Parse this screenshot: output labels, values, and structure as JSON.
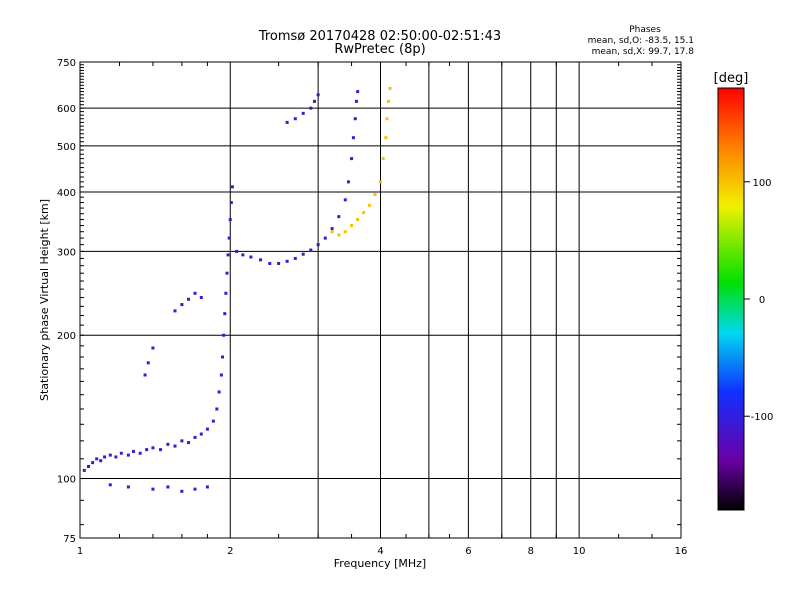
{
  "chart_data": {
    "type": "scatter",
    "title": "Tromsø 20170428 02:50:00-02:51:43",
    "subtitle": "RwPretec (8p)",
    "xlabel": "Frequency [MHz]",
    "ylabel": "Stationary phase Virtual Height [km]",
    "x_scale": "log",
    "y_scale": "log",
    "xlim": [
      1,
      16
    ],
    "ylim": [
      75,
      750
    ],
    "x_ticks": [
      1,
      2,
      4,
      6,
      8,
      10,
      16
    ],
    "y_ticks": [
      75,
      100,
      200,
      300,
      400,
      500,
      600,
      750
    ],
    "x_minor_gridlines": [
      3,
      5,
      7,
      9
    ],
    "grid": true,
    "stats": {
      "header": "Phases",
      "line_o": "mean, sd,O: -83.5, 15.1",
      "line_x": "mean, sd,X:  99.7, 17.8"
    },
    "colorbar": {
      "label": "[deg]",
      "range": [
        -180,
        180
      ],
      "ticks": [
        100,
        0,
        -100
      ],
      "colormap": "rainbow: black-purple-blue-cyan-green-yellow-red"
    },
    "series": [
      {
        "mode": "O",
        "color_phase_deg": -110,
        "points": [
          [
            1.02,
            104
          ],
          [
            1.04,
            106
          ],
          [
            1.06,
            108
          ],
          [
            1.08,
            110
          ],
          [
            1.1,
            109
          ],
          [
            1.12,
            111
          ],
          [
            1.15,
            112
          ],
          [
            1.18,
            111
          ],
          [
            1.21,
            113
          ],
          [
            1.25,
            112
          ],
          [
            1.28,
            114
          ],
          [
            1.32,
            113
          ],
          [
            1.36,
            115
          ],
          [
            1.4,
            116
          ],
          [
            1.45,
            115
          ],
          [
            1.5,
            118
          ],
          [
            1.55,
            117
          ],
          [
            1.6,
            120
          ],
          [
            1.65,
            119
          ],
          [
            1.7,
            122
          ],
          [
            1.75,
            124
          ],
          [
            1.8,
            127
          ],
          [
            1.85,
            132
          ],
          [
            1.88,
            140
          ],
          [
            1.9,
            152
          ],
          [
            1.92,
            165
          ],
          [
            1.93,
            180
          ],
          [
            1.94,
            200
          ],
          [
            1.95,
            222
          ],
          [
            1.96,
            245
          ],
          [
            1.97,
            270
          ],
          [
            1.98,
            295
          ],
          [
            1.99,
            320
          ],
          [
            2.0,
            350
          ],
          [
            2.01,
            380
          ],
          [
            2.02,
            410
          ],
          [
            2.06,
            300
          ],
          [
            2.12,
            295
          ],
          [
            2.2,
            292
          ],
          [
            2.3,
            288
          ],
          [
            2.4,
            283
          ],
          [
            2.5,
            283
          ],
          [
            2.6,
            286
          ],
          [
            2.7,
            290
          ],
          [
            2.8,
            296
          ],
          [
            2.9,
            302
          ],
          [
            3.0,
            310
          ],
          [
            3.1,
            320
          ],
          [
            3.2,
            335
          ],
          [
            3.3,
            355
          ],
          [
            3.4,
            385
          ],
          [
            3.45,
            420
          ],
          [
            3.5,
            470
          ],
          [
            3.53,
            520
          ],
          [
            3.56,
            570
          ],
          [
            3.58,
            620
          ],
          [
            3.6,
            650
          ],
          [
            2.6,
            560
          ],
          [
            2.7,
            570
          ],
          [
            2.8,
            585
          ],
          [
            2.9,
            600
          ],
          [
            2.95,
            620
          ],
          [
            3.0,
            640
          ],
          [
            1.55,
            225
          ],
          [
            1.6,
            232
          ],
          [
            1.65,
            238
          ],
          [
            1.7,
            245
          ],
          [
            1.75,
            240
          ],
          [
            1.35,
            165
          ],
          [
            1.37,
            175
          ],
          [
            1.4,
            188
          ],
          [
            1.15,
            97
          ],
          [
            1.25,
            96
          ],
          [
            1.4,
            95
          ],
          [
            1.5,
            96
          ],
          [
            1.6,
            94
          ],
          [
            1.7,
            95
          ],
          [
            1.8,
            96
          ]
        ]
      },
      {
        "mode": "X",
        "color_phase_deg": 100,
        "points": [
          [
            3.2,
            330
          ],
          [
            3.3,
            325
          ],
          [
            3.4,
            330
          ],
          [
            3.5,
            340
          ],
          [
            3.6,
            350
          ],
          [
            3.7,
            362
          ],
          [
            3.8,
            375
          ],
          [
            3.9,
            395
          ],
          [
            4.0,
            420
          ],
          [
            4.05,
            470
          ],
          [
            4.1,
            520
          ],
          [
            4.12,
            570
          ],
          [
            4.15,
            620
          ],
          [
            4.18,
            660
          ]
        ]
      }
    ]
  }
}
